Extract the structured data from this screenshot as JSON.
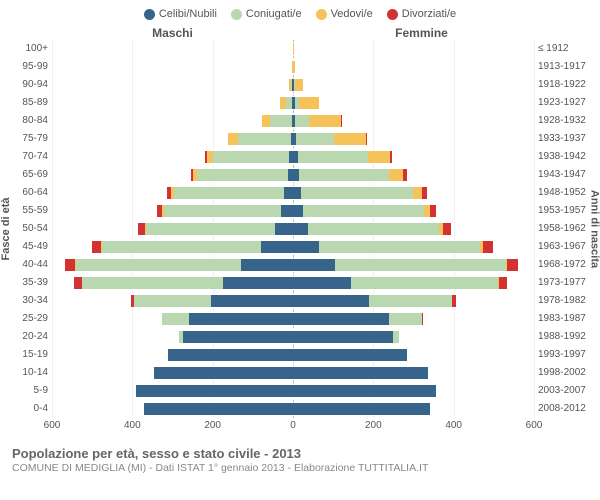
{
  "legend": [
    {
      "label": "Celibi/Nubili",
      "color": "#36648b"
    },
    {
      "label": "Coniugati/e",
      "color": "#b9d8b0"
    },
    {
      "label": "Vedovi/e",
      "color": "#f6c35a"
    },
    {
      "label": "Divorziati/e",
      "color": "#d23232"
    }
  ],
  "side_titles": {
    "male": "Maschi",
    "female": "Femmine"
  },
  "yaxis": {
    "left_title": "Fasce di età",
    "right_title": "Anni di nascita",
    "left_labels": [
      "100+",
      "95-99",
      "90-94",
      "85-89",
      "80-84",
      "75-79",
      "70-74",
      "65-69",
      "60-64",
      "55-59",
      "50-54",
      "45-49",
      "40-44",
      "35-39",
      "30-34",
      "25-29",
      "20-24",
      "15-19",
      "10-14",
      "5-9",
      "0-4"
    ],
    "right_labels": [
      "≤ 1912",
      "1913-1917",
      "1918-1922",
      "1923-1927",
      "1928-1932",
      "1933-1937",
      "1938-1942",
      "1943-1947",
      "1948-1952",
      "1953-1957",
      "1958-1962",
      "1963-1967",
      "1968-1972",
      "1973-1977",
      "1978-1982",
      "1983-1987",
      "1988-1992",
      "1993-1997",
      "1998-2002",
      "2003-2007",
      "2008-2012"
    ]
  },
  "xaxis": {
    "max": 600,
    "ticks": [
      600,
      400,
      200,
      0,
      200,
      400,
      600
    ]
  },
  "colors": {
    "single": "#36648b",
    "married": "#b9d8b0",
    "widowed": "#f6c35a",
    "divorced": "#d23232",
    "grid": "#f0f0f0",
    "zero": "#bbbbbb",
    "background": "#ffffff"
  },
  "typography": {
    "axis_fontsize": 10,
    "legend_fontsize": 11,
    "title_fontsize": 13
  },
  "data": {
    "male": [
      {
        "single": 0,
        "married": 0,
        "widowed": 0,
        "divorced": 0
      },
      {
        "single": 0,
        "married": 0,
        "widowed": 2,
        "divorced": 0
      },
      {
        "single": 2,
        "married": 3,
        "widowed": 6,
        "divorced": 0
      },
      {
        "single": 2,
        "married": 15,
        "widowed": 15,
        "divorced": 0
      },
      {
        "single": 3,
        "married": 55,
        "widowed": 20,
        "divorced": 0
      },
      {
        "single": 6,
        "married": 130,
        "widowed": 25,
        "divorced": 2
      },
      {
        "single": 10,
        "married": 190,
        "widowed": 15,
        "divorced": 3
      },
      {
        "single": 13,
        "married": 225,
        "widowed": 10,
        "divorced": 6
      },
      {
        "single": 22,
        "married": 275,
        "widowed": 8,
        "divorced": 8
      },
      {
        "single": 30,
        "married": 290,
        "widowed": 6,
        "divorced": 12
      },
      {
        "single": 45,
        "married": 320,
        "widowed": 4,
        "divorced": 18
      },
      {
        "single": 80,
        "married": 395,
        "widowed": 3,
        "divorced": 22
      },
      {
        "single": 130,
        "married": 410,
        "widowed": 2,
        "divorced": 25
      },
      {
        "single": 175,
        "married": 350,
        "widowed": 0,
        "divorced": 20
      },
      {
        "single": 205,
        "married": 190,
        "widowed": 0,
        "divorced": 8
      },
      {
        "single": 260,
        "married": 65,
        "widowed": 0,
        "divorced": 2
      },
      {
        "single": 275,
        "married": 8,
        "widowed": 0,
        "divorced": 0
      },
      {
        "single": 310,
        "married": 0,
        "widowed": 0,
        "divorced": 0
      },
      {
        "single": 345,
        "married": 0,
        "widowed": 0,
        "divorced": 0
      },
      {
        "single": 390,
        "married": 0,
        "widowed": 0,
        "divorced": 0
      },
      {
        "single": 370,
        "married": 0,
        "widowed": 0,
        "divorced": 0
      }
    ],
    "female": [
      {
        "single": 1,
        "married": 0,
        "widowed": 1,
        "divorced": 0
      },
      {
        "single": 1,
        "married": 0,
        "widowed": 4,
        "divorced": 0
      },
      {
        "single": 3,
        "married": 2,
        "widowed": 20,
        "divorced": 0
      },
      {
        "single": 4,
        "married": 10,
        "widowed": 50,
        "divorced": 0
      },
      {
        "single": 5,
        "married": 35,
        "widowed": 80,
        "divorced": 1
      },
      {
        "single": 8,
        "married": 95,
        "widowed": 80,
        "divorced": 2
      },
      {
        "single": 12,
        "married": 175,
        "widowed": 55,
        "divorced": 4
      },
      {
        "single": 15,
        "married": 225,
        "widowed": 35,
        "divorced": 8
      },
      {
        "single": 20,
        "married": 280,
        "widowed": 22,
        "divorced": 12
      },
      {
        "single": 26,
        "married": 300,
        "widowed": 15,
        "divorced": 15
      },
      {
        "single": 38,
        "married": 325,
        "widowed": 10,
        "divorced": 20
      },
      {
        "single": 65,
        "married": 400,
        "widowed": 7,
        "divorced": 25
      },
      {
        "single": 105,
        "married": 425,
        "widowed": 4,
        "divorced": 26
      },
      {
        "single": 145,
        "married": 365,
        "widowed": 2,
        "divorced": 22
      },
      {
        "single": 190,
        "married": 205,
        "widowed": 0,
        "divorced": 10
      },
      {
        "single": 240,
        "married": 80,
        "widowed": 0,
        "divorced": 3
      },
      {
        "single": 250,
        "married": 14,
        "widowed": 0,
        "divorced": 0
      },
      {
        "single": 285,
        "married": 0,
        "widowed": 0,
        "divorced": 0
      },
      {
        "single": 335,
        "married": 0,
        "widowed": 0,
        "divorced": 0
      },
      {
        "single": 355,
        "married": 0,
        "widowed": 0,
        "divorced": 0
      },
      {
        "single": 340,
        "married": 0,
        "widowed": 0,
        "divorced": 0
      }
    ]
  },
  "footer": {
    "line1": "Popolazione per età, sesso e stato civile - 2013",
    "line2": "COMUNE DI MEDIGLIA (MI) - Dati ISTAT 1° gennaio 2013 - Elaborazione TUTTITALIA.IT"
  }
}
